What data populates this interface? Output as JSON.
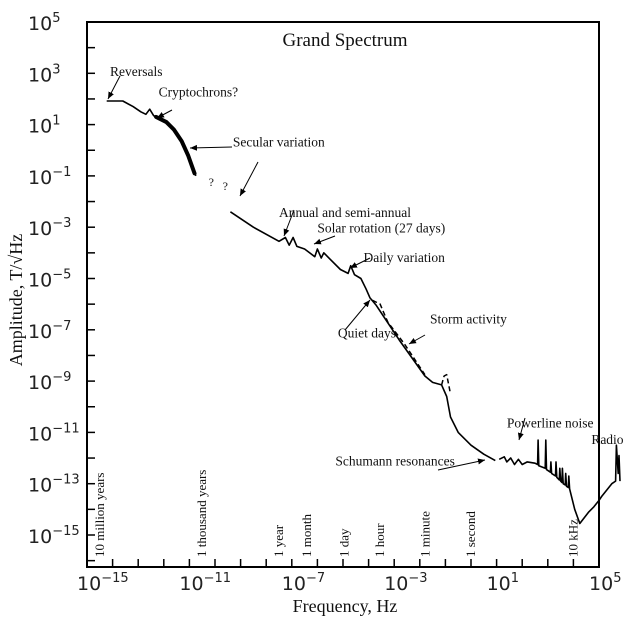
{
  "chart_data": {
    "type": "line",
    "title": "Grand Spectrum",
    "xlabel": "Frequency, Hz",
    "ylabel": "Amplitude, T/√Hz",
    "xscale": "log",
    "yscale": "log",
    "xlim_log10": [
      -15,
      5
    ],
    "ylim_log10": [
      -16.25,
      5
    ],
    "x_tick_labels": [
      {
        "exp": -15,
        "base": "10",
        "sup": "−15"
      },
      {
        "exp": -11,
        "base": "10",
        "sup": "−11"
      },
      {
        "exp": -7,
        "base": "10",
        "sup": "−7"
      },
      {
        "exp": -3,
        "base": "10",
        "sup": "−3"
      },
      {
        "exp": 1,
        "base": "10",
        "sup": "1"
      },
      {
        "exp": 5,
        "base": "10",
        "sup": "5"
      }
    ],
    "y_tick_labels": [
      {
        "exp": 5,
        "base": "10",
        "sup": "5"
      },
      {
        "exp": 3,
        "base": "10",
        "sup": "3"
      },
      {
        "exp": 1,
        "base": "10",
        "sup": "1"
      },
      {
        "exp": -1,
        "base": "10",
        "sup": "−1"
      },
      {
        "exp": -3,
        "base": "10",
        "sup": "−3"
      },
      {
        "exp": -5,
        "base": "10",
        "sup": "−5"
      },
      {
        "exp": -7,
        "base": "10",
        "sup": "−7"
      },
      {
        "exp": -9,
        "base": "10",
        "sup": "−9"
      },
      {
        "exp": -11,
        "base": "10",
        "sup": "−11"
      },
      {
        "exp": -13,
        "base": "10",
        "sup": "−13"
      },
      {
        "exp": -15,
        "base": "10",
        "sup": "−15"
      }
    ],
    "period_markers": [
      {
        "label": "10 million years",
        "log10_f": -14.5
      },
      {
        "label": "1 thousand years",
        "log10_f": -10.5
      },
      {
        "label": "1 year",
        "log10_f": -7.5
      },
      {
        "label": "1 month",
        "log10_f": -6.4
      },
      {
        "label": "1 day",
        "log10_f": -4.94
      },
      {
        "label": "1 hour",
        "log10_f": -3.56
      },
      {
        "label": "1 minute",
        "log10_f": -1.78
      },
      {
        "label": "1 second",
        "log10_f": 0
      },
      {
        "label": "10 kHz",
        "log10_f": 4
      }
    ],
    "series": [
      {
        "name": "Spectrum (quiet days)",
        "style": "solid",
        "segments": [
          [
            [
              -14.23,
              1.92
            ],
            [
              -13.6,
              1.92
            ],
            [
              -13.2,
              1.7
            ],
            [
              -12.9,
              1.5
            ],
            [
              -12.7,
              1.4
            ],
            [
              -12.55,
              1.6
            ],
            [
              -12.4,
              1.35
            ],
            [
              -12.0,
              1.15
            ],
            [
              -11.7,
              0.9
            ],
            [
              -11.4,
              0.5
            ],
            [
              -11.1,
              0.0
            ],
            [
              -10.9,
              -0.55
            ],
            [
              -10.75,
              -1.0
            ]
          ],
          [
            [
              -9.4,
              -2.4
            ],
            [
              -8.5,
              -3.0
            ],
            [
              -7.5,
              -3.55
            ],
            [
              -7.25,
              -3.4
            ],
            [
              -7.1,
              -3.7
            ],
            [
              -6.95,
              -3.4
            ],
            [
              -6.8,
              -3.75
            ],
            [
              -6.5,
              -3.85
            ],
            [
              -6.1,
              -4.15
            ],
            [
              -6.0,
              -3.85
            ],
            [
              -5.85,
              -4.2
            ],
            [
              -5.75,
              -4.0
            ],
            [
              -5.5,
              -4.25
            ],
            [
              -5.1,
              -4.65
            ],
            [
              -4.8,
              -4.8
            ],
            [
              -4.7,
              -4.5
            ],
            [
              -4.55,
              -4.85
            ],
            [
              -4.3,
              -5.0
            ],
            [
              -4.1,
              -5.4
            ],
            [
              -3.95,
              -5.75
            ],
            [
              -3.7,
              -6.05
            ],
            [
              -2.8,
              -7.4
            ],
            [
              -1.8,
              -8.8
            ],
            [
              -1.5,
              -9.05
            ],
            [
              -1.15,
              -9.15
            ],
            [
              -0.95,
              -9.6
            ],
            [
              -0.8,
              -10.4
            ],
            [
              -0.5,
              -11.0
            ],
            [
              0.0,
              -11.5
            ],
            [
              0.5,
              -11.85
            ],
            [
              0.95,
              -12.1
            ]
          ],
          [
            [
              1.1,
              -12.05
            ],
            [
              1.3,
              -11.95
            ],
            [
              1.4,
              -12.15
            ],
            [
              1.55,
              -12.0
            ],
            [
              1.7,
              -12.25
            ],
            [
              1.85,
              -12.05
            ],
            [
              2.0,
              -12.25
            ],
            [
              2.2,
              -12.15
            ],
            [
              2.5,
              -12.2
            ],
            [
              2.6,
              -12.25
            ],
            [
              2.62,
              -11.3
            ],
            [
              2.65,
              -12.3
            ],
            [
              2.9,
              -12.4
            ],
            [
              2.92,
              -11.3
            ],
            [
              2.95,
              -12.45
            ],
            [
              3.1,
              -12.55
            ],
            [
              3.12,
              -12.15
            ],
            [
              3.15,
              -12.6
            ],
            [
              3.3,
              -12.7
            ],
            [
              3.32,
              -12.15
            ],
            [
              3.35,
              -12.75
            ],
            [
              3.45,
              -12.85
            ],
            [
              3.47,
              -12.4
            ],
            [
              3.5,
              -12.9
            ],
            [
              3.55,
              -12.95
            ],
            [
              3.57,
              -12.4
            ],
            [
              3.6,
              -13.0
            ],
            [
              3.68,
              -13.05
            ],
            [
              3.7,
              -12.6
            ],
            [
              3.73,
              -13.1
            ],
            [
              3.8,
              -13.15
            ],
            [
              3.82,
              -12.7
            ],
            [
              3.85,
              -13.2
            ],
            [
              4.05,
              -14.0
            ],
            [
              4.25,
              -14.55
            ],
            [
              4.6,
              -14.1
            ],
            [
              4.8,
              -13.9
            ],
            [
              5.0,
              -13.65
            ],
            [
              5.1,
              -13.5
            ],
            [
              5.3,
              -13.25
            ],
            [
              5.5,
              -13.0
            ],
            [
              5.65,
              -12.9
            ],
            [
              5.68,
              -11.5
            ],
            [
              5.75,
              -12.6
            ],
            [
              5.78,
              -11.9
            ],
            [
              5.82,
              -12.9
            ]
          ]
        ]
      },
      {
        "name": "Storm activity",
        "style": "dashed",
        "segments": [
          [
            [
              -3.85,
              -5.85
            ],
            [
              -3.55,
              -6.0
            ],
            [
              -3.25,
              -6.7
            ],
            [
              -2.6,
              -7.55
            ],
            [
              -2.3,
              -8.0
            ],
            [
              -1.8,
              -8.75
            ]
          ],
          [
            [
              -1.15,
              -9.15
            ],
            [
              -1.05,
              -8.8
            ],
            [
              -0.95,
              -8.75
            ],
            [
              -0.82,
              -9.4
            ]
          ]
        ]
      }
    ],
    "annotations": [
      {
        "text": "Reversals",
        "log10_f": -14.1,
        "log10_a": 2.9
      },
      {
        "text": "Cryptochrons?",
        "log10_f": -12.2,
        "log10_a": 2.1
      },
      {
        "text": "Secular variation",
        "log10_f": -9.3,
        "log10_a": 0.15
      },
      {
        "text": "?",
        "log10_f": -10.25,
        "log10_a": -1.4
      },
      {
        "text": "?",
        "log10_f": -9.7,
        "log10_a": -1.55
      },
      {
        "text": "Annual and semi-annual",
        "log10_f": -7.5,
        "log10_a": -2.6
      },
      {
        "text": "Solar rotation (27 days)",
        "log10_f": -6.0,
        "log10_a": -3.2
      },
      {
        "text": "Daily variation",
        "log10_f": -4.2,
        "log10_a": -4.35
      },
      {
        "text": "Storm activity",
        "log10_f": -1.6,
        "log10_a": -6.75
      },
      {
        "text": "Quiet days",
        "log10_f": -5.2,
        "log10_a": -7.3
      },
      {
        "text": "Powerline noise",
        "log10_f": 1.4,
        "log10_a": -10.8
      },
      {
        "text": "Radio",
        "log10_f": 4.7,
        "log10_a": -11.45
      },
      {
        "text": "Schumann resonances",
        "log10_f": -5.3,
        "log10_a": -12.3
      }
    ]
  }
}
